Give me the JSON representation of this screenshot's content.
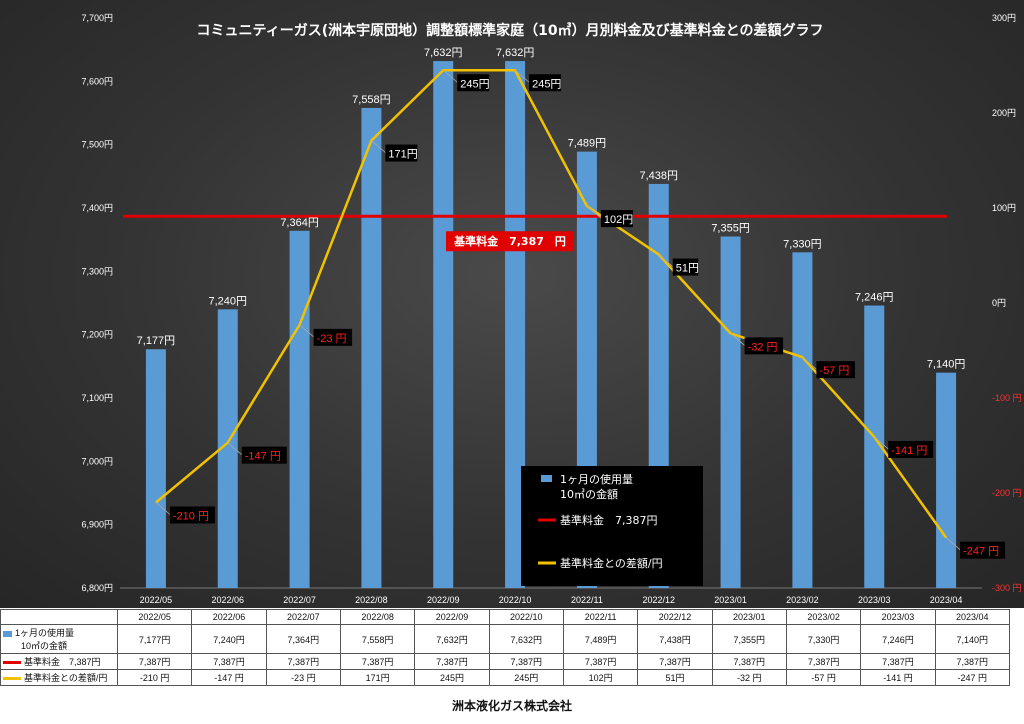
{
  "chart_data": {
    "type": "bar",
    "title": "コミュニティーガス(洲本宇原団地）調整額標準家庭（10㎥）月別料金及び基準料金との差額グラフ",
    "categories": [
      "2022/05",
      "2022/06",
      "2022/07",
      "2022/08",
      "2022/09",
      "2022/10",
      "2022/11",
      "2022/12",
      "2023/01",
      "2023/02",
      "2023/03",
      "2023/04"
    ],
    "series": [
      {
        "name": "1ヶ月の使用量 10㎥の金額",
        "kind": "bar",
        "axis": "left",
        "color": "#5b9bd5",
        "values": [
          7177,
          7240,
          7364,
          7558,
          7632,
          7632,
          7489,
          7438,
          7355,
          7330,
          7246,
          7140
        ],
        "labels": [
          "7,177円",
          "7,240円",
          "7,364円",
          "7,558円",
          "7,632円",
          "7,632円",
          "7,489円",
          "7,438円",
          "7,355円",
          "7,330円",
          "7,246円",
          "7,140円"
        ]
      },
      {
        "name": "基準料金　7,387円",
        "kind": "line",
        "axis": "left",
        "color": "#e00000",
        "values": [
          7387,
          7387,
          7387,
          7387,
          7387,
          7387,
          7387,
          7387,
          7387,
          7387,
          7387,
          7387
        ]
      },
      {
        "name": "基準料金との差額/円",
        "kind": "line",
        "axis": "right",
        "color": "#f2c200",
        "values": [
          -210,
          -147,
          -23,
          171,
          245,
          245,
          102,
          51,
          -32,
          -57,
          -141,
          -247
        ],
        "labels": [
          "-210 円",
          "-147 円",
          "-23 円",
          "171円",
          "245円",
          "245円",
          "102円",
          "51円",
          "-32 円",
          "-57 円",
          "-141 円",
          "-247 円"
        ]
      }
    ],
    "y_left": {
      "ylim": [
        6800,
        7700
      ],
      "ticks": [
        "7,700円",
        "7,600円",
        "7,500円",
        "7,400円",
        "7,300円",
        "7,200円",
        "7,100円",
        "7,000円",
        "6,900円",
        "6,800円"
      ]
    },
    "y_right": {
      "ylim": [
        -300,
        300
      ],
      "ticks": [
        "300円",
        "200円",
        "100円",
        "0円",
        "-100 円",
        "-200 円",
        "-300 円"
      ]
    },
    "base_label": "基準料金　7,387　円",
    "legend": {
      "placement": "bottom-center",
      "items": [
        "1ヶ月の使用量",
        "10㎥の金額",
        "基準料金　7,387円",
        "基準料金との差額/円"
      ]
    },
    "grid": false
  },
  "table": {
    "header": [
      "2022/05",
      "2022/06",
      "2022/07",
      "2022/08",
      "2022/09",
      "2022/10",
      "2022/11",
      "2022/12",
      "2023/01",
      "2023/02",
      "2023/03",
      "2023/04"
    ],
    "rows": [
      {
        "label1": "1ヶ月の使用量",
        "label2": "10㎥の金額",
        "cells": [
          "7,177円",
          "7,240円",
          "7,364円",
          "7,558円",
          "7,632円",
          "7,632円",
          "7,489円",
          "7,438円",
          "7,355円",
          "7,330円",
          "7,246円",
          "7,140円"
        ]
      },
      {
        "label1": "基準料金　7,387円",
        "label2": "",
        "cells": [
          "7,387円",
          "7,387円",
          "7,387円",
          "7,387円",
          "7,387円",
          "7,387円",
          "7,387円",
          "7,387円",
          "7,387円",
          "7,387円",
          "7,387円",
          "7,387円"
        ]
      },
      {
        "label1": "基準料金との差額/円",
        "label2": "",
        "cells": [
          "-210 円",
          "-147 円",
          "-23 円",
          "171円",
          "245円",
          "245円",
          "102円",
          "51円",
          "-32 円",
          "-57 円",
          "-141 円",
          "-247 円"
        ]
      }
    ]
  },
  "footer": "洲本液化ガス株式会社"
}
